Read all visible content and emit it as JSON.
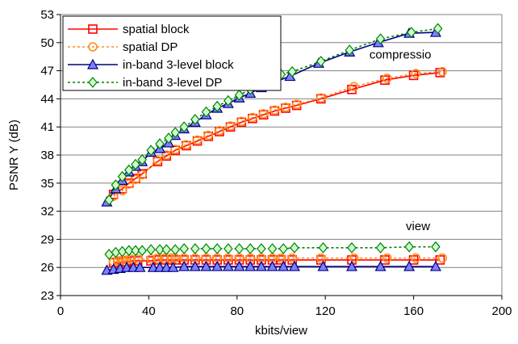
{
  "chart_data": {
    "type": "line",
    "xlabel": "kbits/view",
    "ylabel": "PSNR Y (dB)",
    "xlim": [
      0,
      200
    ],
    "ylim": [
      23,
      53
    ],
    "xticks": [
      "0",
      "40",
      "80",
      "120",
      "160",
      "200"
    ],
    "yticks": [
      "23",
      "26",
      "29",
      "32",
      "35",
      "38",
      "41",
      "44",
      "47",
      "50",
      "53"
    ],
    "grid": "horizontal",
    "legend_position": "top-left",
    "annotations": [
      {
        "text": "compressio",
        "x": 154,
        "y": 48.3
      },
      {
        "text": "view",
        "x": 162,
        "y": 30.0
      }
    ],
    "series": [
      {
        "name": "spatial block",
        "color": "#ff0000",
        "marker": "square",
        "line": "solid",
        "group": "compression",
        "x": [
          24,
          28,
          31,
          34,
          37,
          44,
          48,
          52,
          57,
          62,
          67,
          72,
          77,
          82,
          87,
          92,
          97,
          102,
          107,
          118,
          132,
          147,
          160,
          172
        ],
        "y": [
          33.8,
          34.4,
          35.0,
          35.5,
          36.0,
          37.3,
          37.9,
          38.5,
          39.0,
          39.5,
          40.0,
          40.5,
          41.0,
          41.5,
          41.9,
          42.3,
          42.7,
          43.0,
          43.3,
          44.0,
          45.0,
          46.0,
          46.5,
          46.8
        ]
      },
      {
        "name": "spatial DP",
        "color": "#ff8c1a",
        "marker": "circle",
        "line": "dotted",
        "group": "compression",
        "x": [
          24,
          28,
          31,
          34,
          37,
          44,
          48,
          52,
          57,
          62,
          67,
          72,
          77,
          82,
          87,
          92,
          97,
          102,
          107,
          118,
          133,
          148,
          161,
          173
        ],
        "y": [
          33.6,
          34.2,
          34.9,
          35.4,
          35.9,
          37.4,
          38.0,
          38.6,
          39.1,
          39.6,
          40.1,
          40.6,
          41.1,
          41.6,
          42.0,
          42.4,
          42.8,
          43.1,
          43.4,
          44.1,
          45.3,
          46.2,
          46.7,
          46.9
        ]
      },
      {
        "name": "in-band 3-level block",
        "color": "#000080",
        "marker": "triangle",
        "line": "solid",
        "group": "compression",
        "x": [
          21,
          25,
          28,
          31,
          34,
          37,
          41,
          45,
          49,
          52,
          56,
          61,
          66,
          71,
          76,
          81,
          86,
          91,
          97,
          104,
          117,
          131,
          144,
          158,
          170
        ],
        "y": [
          33.0,
          34.4,
          35.3,
          36.2,
          36.8,
          37.3,
          38.3,
          38.7,
          39.3,
          40.1,
          40.8,
          41.5,
          42.3,
          43.0,
          43.5,
          44.1,
          44.6,
          45.2,
          45.8,
          46.4,
          47.8,
          49.0,
          50.0,
          51.0,
          51.1
        ]
      },
      {
        "name": "in-band 3-level DP",
        "color": "#008000",
        "marker": "diamond",
        "line": "dotted",
        "group": "compression",
        "x": [
          22,
          25,
          28,
          31,
          34,
          37,
          41,
          45,
          49,
          52,
          56,
          61,
          66,
          71,
          76,
          81,
          86,
          91,
          96,
          100,
          105,
          118,
          131,
          145,
          159,
          171
        ],
        "y": [
          33.2,
          34.8,
          35.7,
          36.4,
          37.0,
          37.5,
          38.5,
          39.2,
          39.8,
          40.4,
          41.0,
          41.8,
          42.6,
          43.2,
          43.8,
          44.4,
          45.0,
          45.6,
          46.2,
          46.6,
          46.9,
          48.0,
          49.2,
          50.4,
          51.1,
          51.5
        ]
      },
      {
        "name": "spatial block",
        "color": "#ff0000",
        "marker": "square",
        "line": "solid",
        "group": "view",
        "x": [
          24,
          26,
          28,
          30,
          32,
          35,
          41,
          44,
          47,
          50,
          52,
          56,
          61,
          66,
          71,
          76,
          81,
          86,
          91,
          96,
          100,
          105,
          118,
          132,
          147,
          160,
          172
        ],
        "y": [
          26.5,
          26.5,
          26.6,
          26.6,
          26.7,
          26.7,
          26.7,
          26.8,
          26.8,
          26.8,
          26.8,
          26.8,
          26.8,
          26.8,
          26.8,
          26.8,
          26.8,
          26.8,
          26.8,
          26.8,
          26.8,
          26.8,
          26.8,
          26.8,
          26.8,
          26.8,
          26.8
        ]
      },
      {
        "name": "spatial DP",
        "color": "#ff8c1a",
        "marker": "circle",
        "line": "dotted",
        "group": "view",
        "x": [
          24,
          26,
          28,
          30,
          32,
          35,
          41,
          44,
          47,
          50,
          52,
          56,
          61,
          66,
          71,
          76,
          81,
          86,
          91,
          96,
          100,
          105,
          118,
          133,
          148,
          161,
          173
        ],
        "y": [
          26.6,
          26.7,
          26.8,
          26.8,
          26.9,
          26.9,
          26.9,
          27.0,
          27.0,
          27.0,
          27.0,
          27.0,
          27.0,
          27.0,
          27.0,
          27.0,
          27.0,
          27.0,
          27.0,
          27.0,
          27.0,
          27.0,
          27.0,
          27.0,
          27.0,
          27.0,
          27.0
        ]
      },
      {
        "name": "in-band 3-level block",
        "color": "#000080",
        "marker": "triangle",
        "line": "solid",
        "group": "view",
        "x": [
          21,
          24,
          27,
          30,
          33,
          36,
          42,
          45,
          48,
          51,
          56,
          61,
          66,
          71,
          76,
          81,
          86,
          91,
          96,
          101,
          106,
          119,
          132,
          145,
          158,
          170
        ],
        "y": [
          25.7,
          25.8,
          25.9,
          26.0,
          26.0,
          26.0,
          26.0,
          26.0,
          26.0,
          26.0,
          26.1,
          26.1,
          26.1,
          26.1,
          26.1,
          26.1,
          26.1,
          26.1,
          26.1,
          26.1,
          26.1,
          26.1,
          26.1,
          26.1,
          26.1,
          26.1
        ]
      },
      {
        "name": "in-band 3-level DP",
        "color": "#008000",
        "marker": "diamond",
        "line": "dotted",
        "group": "view",
        "x": [
          22,
          25,
          28,
          31,
          34,
          37,
          41,
          45,
          48,
          52,
          56,
          61,
          66,
          71,
          76,
          81,
          86,
          91,
          96,
          101,
          106,
          119,
          132,
          145,
          158,
          170
        ],
        "y": [
          27.4,
          27.6,
          27.7,
          27.8,
          27.8,
          27.8,
          27.9,
          27.9,
          27.9,
          27.9,
          28.0,
          28.0,
          28.0,
          28.0,
          28.0,
          28.0,
          28.0,
          28.0,
          28.0,
          28.0,
          28.1,
          28.1,
          28.1,
          28.1,
          28.2,
          28.2
        ]
      }
    ]
  }
}
